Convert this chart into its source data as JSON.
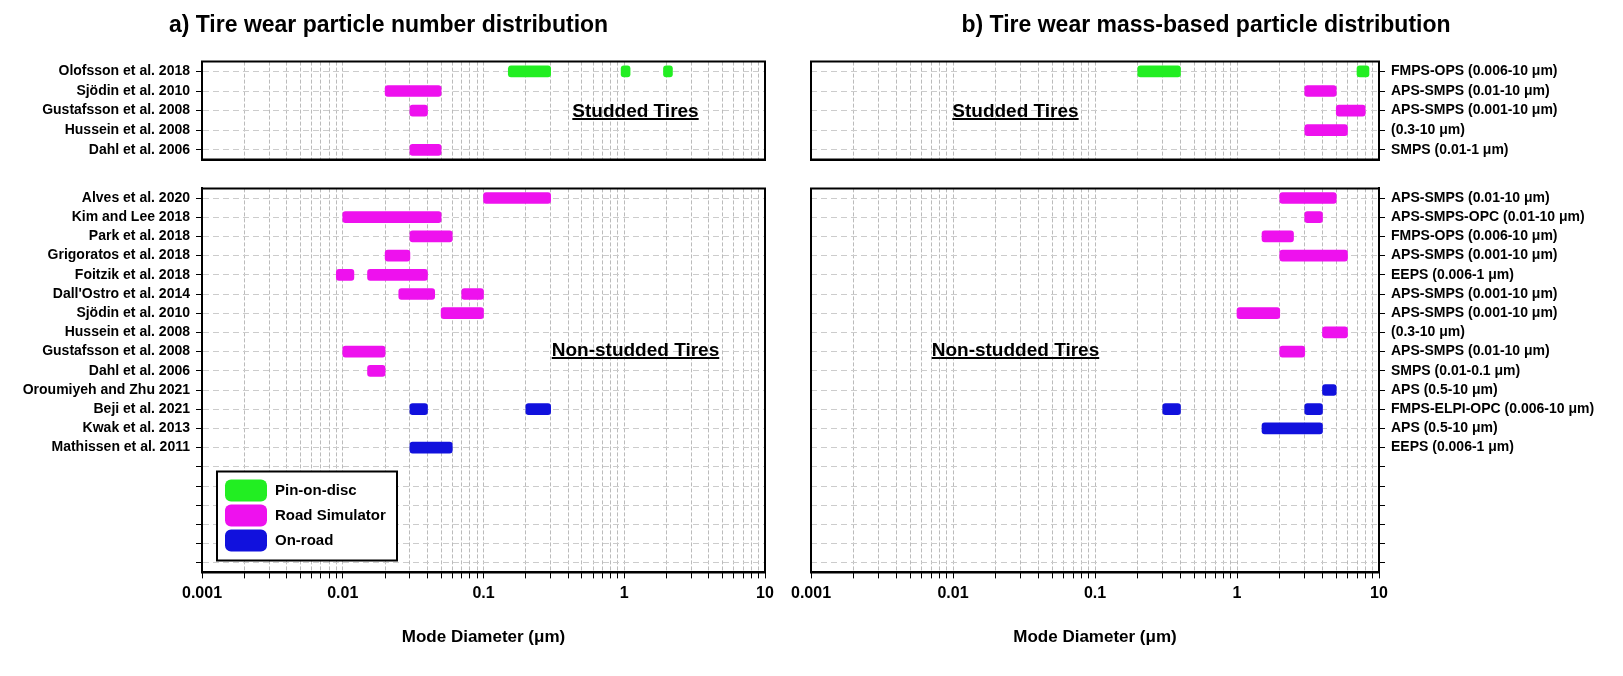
{
  "chart_data": [
    {
      "type": "bar",
      "orientation": "horizontal",
      "title": "a) Tire wear particle number distribution",
      "log": "x",
      "grid": true,
      "tick_labels": "y",
      "categories": [
        "Olofsson et al. 2018",
        "Sjödin et al. 2010",
        "Gustafsson et al. 2008",
        "Hussein et al. 2008",
        "Dahl et al. 2006"
      ],
      "xlim": [
        0.001,
        10
      ],
      "xticks": [
        0.001,
        {
          "value": 0.002,
          "label": null
        },
        {
          "value": 0.003,
          "label": null
        },
        {
          "value": 0.004,
          "label": null
        },
        {
          "value": 0.005,
          "label": null
        },
        {
          "value": 0.006,
          "label": null
        },
        {
          "value": 0.007,
          "label": null
        },
        {
          "value": 0.008,
          "label": null
        },
        {
          "value": 0.009,
          "label": null
        },
        0.01,
        {
          "value": 0.02,
          "label": null
        },
        {
          "value": 0.03,
          "label": null
        },
        {
          "value": 0.04,
          "label": null
        },
        {
          "value": 0.05,
          "label": null
        },
        {
          "value": 0.06,
          "label": null
        },
        {
          "value": 0.07,
          "label": null
        },
        {
          "value": 0.08,
          "label": null
        },
        {
          "value": 0.09,
          "label": null
        },
        0.1,
        {
          "value": 0.2,
          "label": null
        },
        {
          "value": 0.3,
          "label": null
        },
        {
          "value": 0.4,
          "label": null
        },
        {
          "value": 0.5,
          "label": null
        },
        {
          "value": 0.6,
          "label": null
        },
        {
          "value": 0.7,
          "label": null
        },
        {
          "value": 0.8,
          "label": null
        },
        {
          "value": 0.9,
          "label": null
        },
        1,
        {
          "value": 2,
          "label": null
        },
        {
          "value": 3,
          "label": null
        },
        {
          "value": 4,
          "label": null
        },
        {
          "value": 5,
          "label": null
        },
        {
          "value": 6,
          "label": null
        },
        {
          "value": 7,
          "label": null
        },
        {
          "value": 8,
          "label": null
        },
        {
          "value": 9,
          "label": null
        },
        10
      ],
      "annotations": [
        "Studded Tires"
      ],
      "series": [
        {
          "color": "#22ee22",
          "base": [
            0.15,
            null,
            null,
            null,
            null
          ],
          "values": [
            0.15,
            null,
            null,
            null,
            null
          ]
        },
        {
          "color": "#22ee22",
          "base": [
            0.95,
            null,
            null,
            null,
            null
          ],
          "values": [
            0.15,
            null,
            null,
            null,
            null
          ]
        },
        {
          "color": "#22ee22",
          "base": [
            1.9,
            null,
            null,
            null,
            null
          ],
          "values": [
            0.3,
            null,
            null,
            null,
            null
          ]
        },
        {
          "color": "#ee11ee",
          "base": [
            null,
            0.02,
            0.03,
            null,
            0.03
          ],
          "values": [
            null,
            0.03,
            0.01,
            null,
            0.02
          ]
        }
      ]
    },
    {
      "type": "bar",
      "orientation": "horizontal",
      "title": "b) Tire wear mass-based particle distribution",
      "log": "x",
      "grid": true,
      "tick_labels": "y",
      "categories": [
        "FMPS-OPS (0.006-10 μm)",
        "APS-SMPS (0.01-10 μm)",
        "APS-SMPS (0.001-10 μm)",
        "(0.3-10 μm)",
        "SMPS (0.01-1 μm)"
      ],
      "xlim": [
        0.001,
        10
      ],
      "xticks": [
        0.001,
        {
          "value": 0.002,
          "label": null
        },
        {
          "value": 0.003,
          "label": null
        },
        {
          "value": 0.004,
          "label": null
        },
        {
          "value": 0.005,
          "label": null
        },
        {
          "value": 0.006,
          "label": null
        },
        {
          "value": 0.007,
          "label": null
        },
        {
          "value": 0.008,
          "label": null
        },
        {
          "value": 0.009,
          "label": null
        },
        0.01,
        {
          "value": 0.02,
          "label": null
        },
        {
          "value": 0.03,
          "label": null
        },
        {
          "value": 0.04,
          "label": null
        },
        {
          "value": 0.05,
          "label": null
        },
        {
          "value": 0.06,
          "label": null
        },
        {
          "value": 0.07,
          "label": null
        },
        {
          "value": 0.08,
          "label": null
        },
        {
          "value": 0.09,
          "label": null
        },
        0.1,
        {
          "value": 0.2,
          "label": null
        },
        {
          "value": 0.3,
          "label": null
        },
        {
          "value": 0.4,
          "label": null
        },
        {
          "value": 0.5,
          "label": null
        },
        {
          "value": 0.6,
          "label": null
        },
        {
          "value": 0.7,
          "label": null
        },
        {
          "value": 0.8,
          "label": null
        },
        {
          "value": 0.9,
          "label": null
        },
        1,
        {
          "value": 2,
          "label": null
        },
        {
          "value": 3,
          "label": null
        },
        {
          "value": 4,
          "label": null
        },
        {
          "value": 5,
          "label": null
        },
        {
          "value": 6,
          "label": null
        },
        {
          "value": 7,
          "label": null
        },
        {
          "value": 8,
          "label": null
        },
        {
          "value": 9,
          "label": null
        },
        10
      ],
      "annotations": [
        "Studded Tires"
      ],
      "series": [
        {
          "color": "#22ee22",
          "base": [
            0.2,
            null,
            null,
            null,
            null
          ],
          "values": [
            0.2,
            null,
            null,
            null,
            null
          ]
        },
        {
          "color": "#22ee22",
          "base": [
            7,
            null,
            null,
            null,
            null
          ],
          "values": [
            1.5,
            null,
            null,
            null,
            null
          ]
        },
        {
          "color": "#ee11ee",
          "base": [
            null,
            3,
            5,
            3,
            null
          ],
          "values": [
            null,
            2,
            3,
            3,
            null
          ]
        }
      ]
    },
    {
      "type": "bar",
      "orientation": "horizontal",
      "xlabel": "Mode Diameter (μm)",
      "log": "x",
      "grid": true,
      "legend": "bottom left",
      "categories": [
        "Alves et al. 2020",
        "Kim and Lee 2018",
        "Park et al. 2018",
        "Grigoratos et al. 2018",
        "Foitzik et al. 2018",
        "Dall'Ostro et al. 2014",
        "Sjödin et al. 2010",
        "Hussein et al. 2008",
        "Gustafsson et al. 2008",
        "Dahl et al. 2006",
        "Oroumiyeh and Zhu 2021",
        "Beji et al. 2021",
        "Kwak et al. 2013",
        "Mathissen et al. 2011",
        null,
        null,
        null,
        null,
        null,
        null
      ],
      "xlim": [
        0.001,
        10
      ],
      "xticks": [
        0.001,
        {
          "value": 0.002,
          "label": null
        },
        {
          "value": 0.003,
          "label": null
        },
        {
          "value": 0.004,
          "label": null
        },
        {
          "value": 0.005,
          "label": null
        },
        {
          "value": 0.006,
          "label": null
        },
        {
          "value": 0.007,
          "label": null
        },
        {
          "value": 0.008,
          "label": null
        },
        {
          "value": 0.009,
          "label": null
        },
        0.01,
        {
          "value": 0.02,
          "label": null
        },
        {
          "value": 0.03,
          "label": null
        },
        {
          "value": 0.04,
          "label": null
        },
        {
          "value": 0.05,
          "label": null
        },
        {
          "value": 0.06,
          "label": null
        },
        {
          "value": 0.07,
          "label": null
        },
        {
          "value": 0.08,
          "label": null
        },
        {
          "value": 0.09,
          "label": null
        },
        0.1,
        {
          "value": 0.2,
          "label": null
        },
        {
          "value": 0.3,
          "label": null
        },
        {
          "value": 0.4,
          "label": null
        },
        {
          "value": 0.5,
          "label": null
        },
        {
          "value": 0.6,
          "label": null
        },
        {
          "value": 0.7,
          "label": null
        },
        {
          "value": 0.8,
          "label": null
        },
        {
          "value": 0.9,
          "label": null
        },
        1,
        {
          "value": 2,
          "label": null
        },
        {
          "value": 3,
          "label": null
        },
        {
          "value": 4,
          "label": null
        },
        {
          "value": 5,
          "label": null
        },
        {
          "value": 6,
          "label": null
        },
        {
          "value": 7,
          "label": null
        },
        {
          "value": 8,
          "label": null
        },
        {
          "value": 9,
          "label": null
        },
        10
      ],
      "annotations": [
        "Non-studded Tires"
      ],
      "series": [
        {
          "name": "Pin-on-disc",
          "color": "#22ee22",
          "base": [
            null,
            null,
            null,
            null,
            null,
            null,
            null,
            null,
            null,
            null,
            null,
            null,
            null,
            null,
            null,
            null,
            null,
            null,
            null,
            null
          ],
          "values": [
            null,
            null,
            null,
            null,
            null,
            null,
            null,
            null,
            null,
            null,
            null,
            null,
            null,
            null,
            null,
            null,
            null,
            null,
            null,
            null
          ]
        },
        {
          "name": "Road Simulator",
          "color": "#ee11ee",
          "base": [
            0.1,
            0.01,
            0.03,
            0.02,
            0.009,
            0.025,
            0.05,
            null,
            0.01,
            0.015,
            null,
            null,
            null,
            null,
            null,
            null,
            null,
            null,
            null,
            null
          ],
          "values": [
            0.2,
            0.04,
            0.03,
            0.01,
            0.003,
            0.02,
            0.05,
            null,
            0.01,
            0.005,
            null,
            null,
            null,
            null,
            null,
            null,
            null,
            null,
            null,
            null
          ]
        },
        {
          "color": "#ee11ee",
          "base": [
            null,
            null,
            null,
            null,
            0.015,
            0.07,
            null,
            null,
            null,
            null,
            null,
            null,
            null,
            null,
            null,
            null,
            null,
            null,
            null,
            null
          ],
          "values": [
            null,
            null,
            null,
            null,
            0.025,
            0.03,
            null,
            null,
            null,
            null,
            null,
            null,
            null,
            null,
            null,
            null,
            null,
            null,
            null,
            null
          ]
        },
        {
          "name": "On-road",
          "color": "#1111dd",
          "base": [
            null,
            null,
            null,
            null,
            null,
            null,
            null,
            null,
            null,
            null,
            null,
            0.03,
            null,
            0.03,
            null,
            null,
            null,
            null,
            null,
            null
          ],
          "values": [
            null,
            null,
            null,
            null,
            null,
            null,
            null,
            null,
            null,
            null,
            null,
            0.01,
            null,
            0.03,
            null,
            null,
            null,
            null,
            null,
            null
          ]
        },
        {
          "color": "#1111dd",
          "base": [
            null,
            null,
            null,
            null,
            null,
            null,
            null,
            null,
            null,
            null,
            null,
            0.2,
            null,
            null,
            null,
            null,
            null,
            null,
            null,
            null
          ],
          "values": [
            null,
            null,
            null,
            null,
            null,
            null,
            null,
            null,
            null,
            null,
            null,
            0.1,
            null,
            null,
            null,
            null,
            null,
            null,
            null,
            null
          ]
        }
      ]
    },
    {
      "type": "bar",
      "orientation": "horizontal",
      "xlabel": "Mode Diameter (μm)",
      "log": "x",
      "grid": true,
      "categories": [
        "APS-SMPS (0.01-10 μm)",
        "APS-SMPS-OPC (0.01-10 μm)",
        "FMPS-OPS (0.006-10 μm)",
        "APS-SMPS (0.001-10 μm)",
        "EEPS (0.006-1 μm)",
        "APS-SMPS (0.001-10 μm)",
        "APS-SMPS (0.001-10 μm)",
        "(0.3-10 μm)",
        "APS-SMPS (0.01-10 μm)",
        "SMPS (0.01-0.1 μm)",
        "APS (0.5-10 μm)",
        "FMPS-ELPI-OPC (0.006-10 μm)",
        "APS (0.5-10 μm)",
        "EEPS (0.006-1 μm)",
        null,
        null,
        null,
        null,
        null,
        null
      ],
      "xlim": [
        0.001,
        10
      ],
      "xticks": [
        0.001,
        {
          "value": 0.002,
          "label": null
        },
        {
          "value": 0.003,
          "label": null
        },
        {
          "value": 0.004,
          "label": null
        },
        {
          "value": 0.005,
          "label": null
        },
        {
          "value": 0.006,
          "label": null
        },
        {
          "value": 0.007,
          "label": null
        },
        {
          "value": 0.008,
          "label": null
        },
        {
          "value": 0.009,
          "label": null
        },
        0.01,
        {
          "value": 0.02,
          "label": null
        },
        {
          "value": 0.03,
          "label": null
        },
        {
          "value": 0.04,
          "label": null
        },
        {
          "value": 0.05,
          "label": null
        },
        {
          "value": 0.06,
          "label": null
        },
        {
          "value": 0.07,
          "label": null
        },
        {
          "value": 0.08,
          "label": null
        },
        {
          "value": 0.09,
          "label": null
        },
        0.1,
        {
          "value": 0.2,
          "label": null
        },
        {
          "value": 0.3,
          "label": null
        },
        {
          "value": 0.4,
          "label": null
        },
        {
          "value": 0.5,
          "label": null
        },
        {
          "value": 0.6,
          "label": null
        },
        {
          "value": 0.7,
          "label": null
        },
        {
          "value": 0.8,
          "label": null
        },
        {
          "value": 0.9,
          "label": null
        },
        1,
        {
          "value": 2,
          "label": null
        },
        {
          "value": 3,
          "label": null
        },
        {
          "value": 4,
          "label": null
        },
        {
          "value": 5,
          "label": null
        },
        {
          "value": 6,
          "label": null
        },
        {
          "value": 7,
          "label": null
        },
        {
          "value": 8,
          "label": null
        },
        {
          "value": 9,
          "label": null
        },
        10
      ],
      "annotations": [
        "Non-studded Tires"
      ],
      "series": [
        {
          "color": "#ee11ee",
          "base": [
            2,
            3,
            1.5,
            2,
            null,
            null,
            1,
            4,
            2,
            null,
            null,
            null,
            null,
            null,
            null,
            null,
            null,
            null,
            null,
            null
          ],
          "values": [
            3,
            1,
            1,
            4,
            null,
            null,
            1,
            2,
            1,
            null,
            null,
            null,
            null,
            null,
            null,
            null,
            null,
            null,
            null,
            null
          ]
        },
        {
          "color": "#1111dd",
          "base": [
            null,
            null,
            null,
            null,
            null,
            null,
            null,
            null,
            null,
            null,
            4,
            0.3,
            1.5,
            null,
            null,
            null,
            null,
            null,
            null,
            null
          ],
          "values": [
            null,
            null,
            null,
            null,
            null,
            null,
            null,
            null,
            null,
            null,
            1,
            0.1,
            2.5,
            null,
            null,
            null,
            null,
            null,
            null,
            null
          ]
        },
        {
          "color": "#1111dd",
          "base": [
            null,
            null,
            null,
            null,
            null,
            null,
            null,
            null,
            null,
            null,
            null,
            3,
            null,
            null,
            null,
            null,
            null,
            null,
            null,
            null
          ],
          "values": [
            null,
            null,
            null,
            null,
            null,
            null,
            null,
            null,
            null,
            null,
            null,
            1,
            null,
            null,
            null,
            null,
            null,
            null,
            null,
            null
          ]
        }
      ]
    }
  ]
}
